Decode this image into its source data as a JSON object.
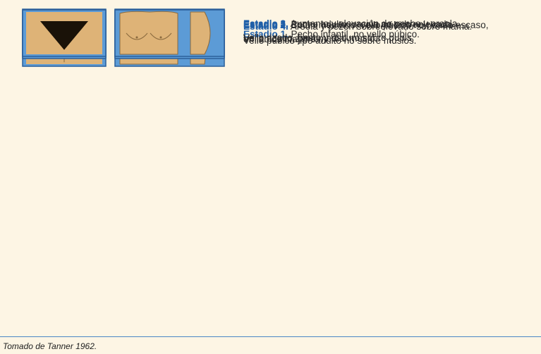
{
  "rows": [
    {
      "stage": "Estadio 1.",
      "lines": [
        "Pecho infantil, no vello púbico."
      ]
    },
    {
      "stage": "Estadio 2.",
      "lines": [
        "Botón mamario, vello púbico no rizado escaso,",
        "en labios mayores."
      ]
    },
    {
      "stage": "Estadio 3.",
      "lines": [
        "Aumento y elevación de pecho y areola.",
        "Vello rizado, basto y oscuro sobre pubis."
      ]
    },
    {
      "stage": "Estadio 4.",
      "lines": [
        "Areola y pezón sobreelevado sobre mama.",
        "Vello púbico tipo adulto no sobre muslos."
      ]
    },
    {
      "stage": "Estadio 5.",
      "lines": [
        "Pecho adulto, areola no sobreelevada.",
        "Vello adulto zona medial muslo."
      ]
    }
  ],
  "footer": "Tomado de Tanner 1962."
}
